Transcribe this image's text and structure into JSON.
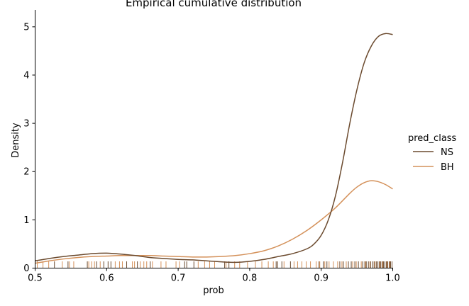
{
  "chart_data": {
    "type": "line",
    "title": "Empirical cumulative distribution",
    "xlabel": "prob",
    "ylabel": "Density",
    "xlim": [
      0.5,
      1.0
    ],
    "ylim": [
      0,
      5.35
    ],
    "xticks": [
      0.5,
      0.6,
      0.7,
      0.8,
      0.9,
      1.0
    ],
    "xtick_labels": [
      "0.5",
      "0.6",
      "0.7",
      "0.8",
      "0.9",
      "1.0"
    ],
    "yticks": [
      0,
      1,
      2,
      3,
      4,
      5
    ],
    "ytick_labels": [
      "0",
      "1",
      "2",
      "3",
      "4",
      "5"
    ],
    "grid": false,
    "legend": {
      "title": "pred_class",
      "placement": "right"
    },
    "series": [
      {
        "name": "NS",
        "color": "#6b4a2e",
        "x": [
          0.5,
          0.52,
          0.54,
          0.56,
          0.58,
          0.6,
          0.62,
          0.64,
          0.66,
          0.68,
          0.7,
          0.72,
          0.74,
          0.76,
          0.78,
          0.8,
          0.82,
          0.84,
          0.86,
          0.88,
          0.89,
          0.9,
          0.91,
          0.92,
          0.93,
          0.94,
          0.95,
          0.96,
          0.97,
          0.98,
          0.99,
          1.0
        ],
        "y": [
          0.15,
          0.2,
          0.24,
          0.27,
          0.3,
          0.31,
          0.29,
          0.26,
          0.22,
          0.2,
          0.18,
          0.17,
          0.15,
          0.13,
          0.12,
          0.14,
          0.18,
          0.24,
          0.3,
          0.4,
          0.5,
          0.68,
          1.0,
          1.5,
          2.2,
          3.0,
          3.7,
          4.25,
          4.6,
          4.8,
          4.86,
          4.84
        ]
      },
      {
        "name": "BH",
        "color": "#d4915a",
        "x": [
          0.5,
          0.52,
          0.54,
          0.56,
          0.58,
          0.6,
          0.62,
          0.64,
          0.66,
          0.68,
          0.7,
          0.72,
          0.74,
          0.76,
          0.78,
          0.8,
          0.82,
          0.84,
          0.86,
          0.88,
          0.9,
          0.92,
          0.94,
          0.95,
          0.96,
          0.97,
          0.98,
          0.99,
          1.0
        ],
        "y": [
          0.1,
          0.15,
          0.19,
          0.22,
          0.24,
          0.25,
          0.26,
          0.26,
          0.26,
          0.25,
          0.24,
          0.23,
          0.23,
          0.24,
          0.26,
          0.3,
          0.36,
          0.46,
          0.6,
          0.78,
          1.0,
          1.25,
          1.55,
          1.68,
          1.77,
          1.81,
          1.79,
          1.73,
          1.64
        ]
      }
    ],
    "rug": [
      {
        "name": "NS",
        "color": "#6b4a2e",
        "x": [
          0.527,
          0.546,
          0.573,
          0.586,
          0.596,
          0.602,
          0.606,
          0.628,
          0.643,
          0.661,
          0.709,
          0.712,
          0.722,
          0.765,
          0.771,
          0.837,
          0.839,
          0.845,
          0.857,
          0.897,
          0.903,
          0.908,
          0.926,
          0.931,
          0.938,
          0.942,
          0.947,
          0.952,
          0.958,
          0.961,
          0.963,
          0.966,
          0.969,
          0.972,
          0.974,
          0.977,
          0.979,
          0.981,
          0.983,
          0.985,
          0.987,
          0.989,
          0.991,
          0.993,
          0.995,
          0.997,
          0.999
        ]
      },
      {
        "name": "BH",
        "color": "#d4915a",
        "x": [
          0.503,
          0.511,
          0.519,
          0.538,
          0.548,
          0.554,
          0.575,
          0.579,
          0.583,
          0.591,
          0.612,
          0.618,
          0.622,
          0.636,
          0.639,
          0.647,
          0.652,
          0.656,
          0.664,
          0.676,
          0.683,
          0.697,
          0.702,
          0.728,
          0.737,
          0.744,
          0.751,
          0.767,
          0.779,
          0.786,
          0.797,
          0.808,
          0.817,
          0.826,
          0.833,
          0.848,
          0.862,
          0.867,
          0.873,
          0.879,
          0.885,
          0.893,
          0.898,
          0.905,
          0.911,
          0.917,
          0.923,
          0.929,
          0.935,
          0.944,
          0.949,
          0.956,
          0.962,
          0.968,
          0.975,
          0.982,
          0.986,
          0.992,
          0.996
        ]
      }
    ]
  }
}
